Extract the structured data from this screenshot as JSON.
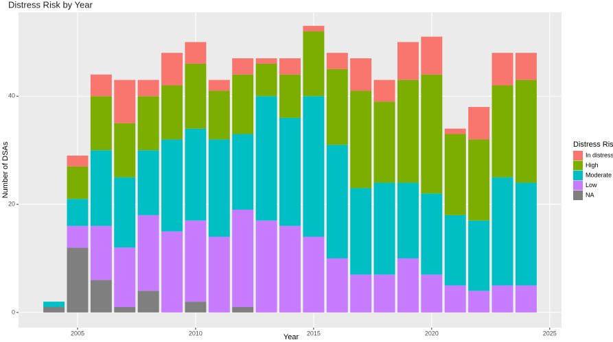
{
  "chart_data": {
    "type": "stacked-bar",
    "title": "Distress Risk by Year",
    "x_label": "Year",
    "y_label": "Number of DSAs",
    "legend_title": "Distress Risk",
    "legend_position": "right",
    "grid": true,
    "x": [
      2004,
      2005,
      2006,
      2007,
      2008,
      2009,
      2010,
      2011,
      2012,
      2013,
      2014,
      2015,
      2016,
      2017,
      2018,
      2019,
      2020,
      2021,
      2022,
      2023,
      2024
    ],
    "xlim": [
      2002.5,
      2025.5
    ],
    "xticks": [
      2005,
      2010,
      2015,
      2020,
      2025
    ],
    "ylim": [
      -2.8,
      55.5
    ],
    "yticks": [
      0,
      20,
      40
    ],
    "series": [
      {
        "name": "In distress",
        "color": "#F8766D",
        "values": [
          0,
          2,
          4,
          8,
          3,
          6,
          4,
          2,
          3,
          1,
          3,
          1,
          3,
          6,
          4,
          7,
          7,
          1,
          6,
          6,
          5
        ]
      },
      {
        "name": "High",
        "color": "#7CAE00",
        "values": [
          0,
          6,
          10,
          10,
          10,
          10,
          12,
          9,
          11,
          6,
          8,
          12,
          14,
          18,
          15,
          19,
          22,
          15,
          15,
          17,
          19
        ]
      },
      {
        "name": "Moderate",
        "color": "#00BFC4",
        "values": [
          1,
          5,
          14,
          13,
          12,
          17,
          17,
          18,
          14,
          23,
          20,
          26,
          21,
          16,
          17,
          14,
          15,
          13,
          13,
          20,
          19
        ]
      },
      {
        "name": "Low",
        "color": "#C77CFF",
        "values": [
          0,
          4,
          10,
          11,
          14,
          15,
          15,
          14,
          18,
          17,
          16,
          14,
          10,
          7,
          7,
          10,
          7,
          5,
          4,
          5,
          5
        ]
      },
      {
        "name": "NA",
        "color": "#7F7F7F",
        "values": [
          1,
          12,
          6,
          1,
          4,
          0,
          2,
          0,
          1,
          0,
          0,
          0,
          0,
          0,
          0,
          0,
          0,
          0,
          0,
          0,
          0
        ]
      }
    ]
  }
}
